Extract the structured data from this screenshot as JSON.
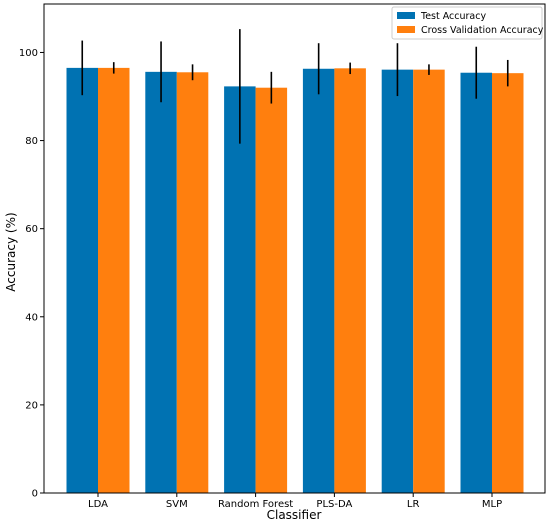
{
  "chart_data": {
    "type": "bar",
    "title": "",
    "xlabel": "Classifier",
    "ylabel": "Accuracy (%)",
    "categories": [
      "LDA",
      "SVM",
      "Random Forest",
      "PLS-DA",
      "LR",
      "MLP"
    ],
    "ylim": [
      0,
      111
    ],
    "yticks": [
      0,
      20,
      40,
      60,
      80,
      100
    ],
    "grid": false,
    "legend_position": "top-right",
    "series": [
      {
        "name": "Test Accuracy",
        "color": "#0072b2",
        "values": [
          96.5,
          95.6,
          92.3,
          96.3,
          96.1,
          95.4
        ],
        "errors": [
          6.2,
          6.9,
          13.0,
          5.8,
          6.0,
          5.9
        ]
      },
      {
        "name": "Cross Validation Accuracy",
        "color": "#ff7f0e",
        "values": [
          96.5,
          95.5,
          92.0,
          96.4,
          96.1,
          95.3
        ],
        "errors": [
          1.3,
          1.8,
          3.6,
          1.3,
          1.2,
          3.0
        ]
      }
    ]
  }
}
